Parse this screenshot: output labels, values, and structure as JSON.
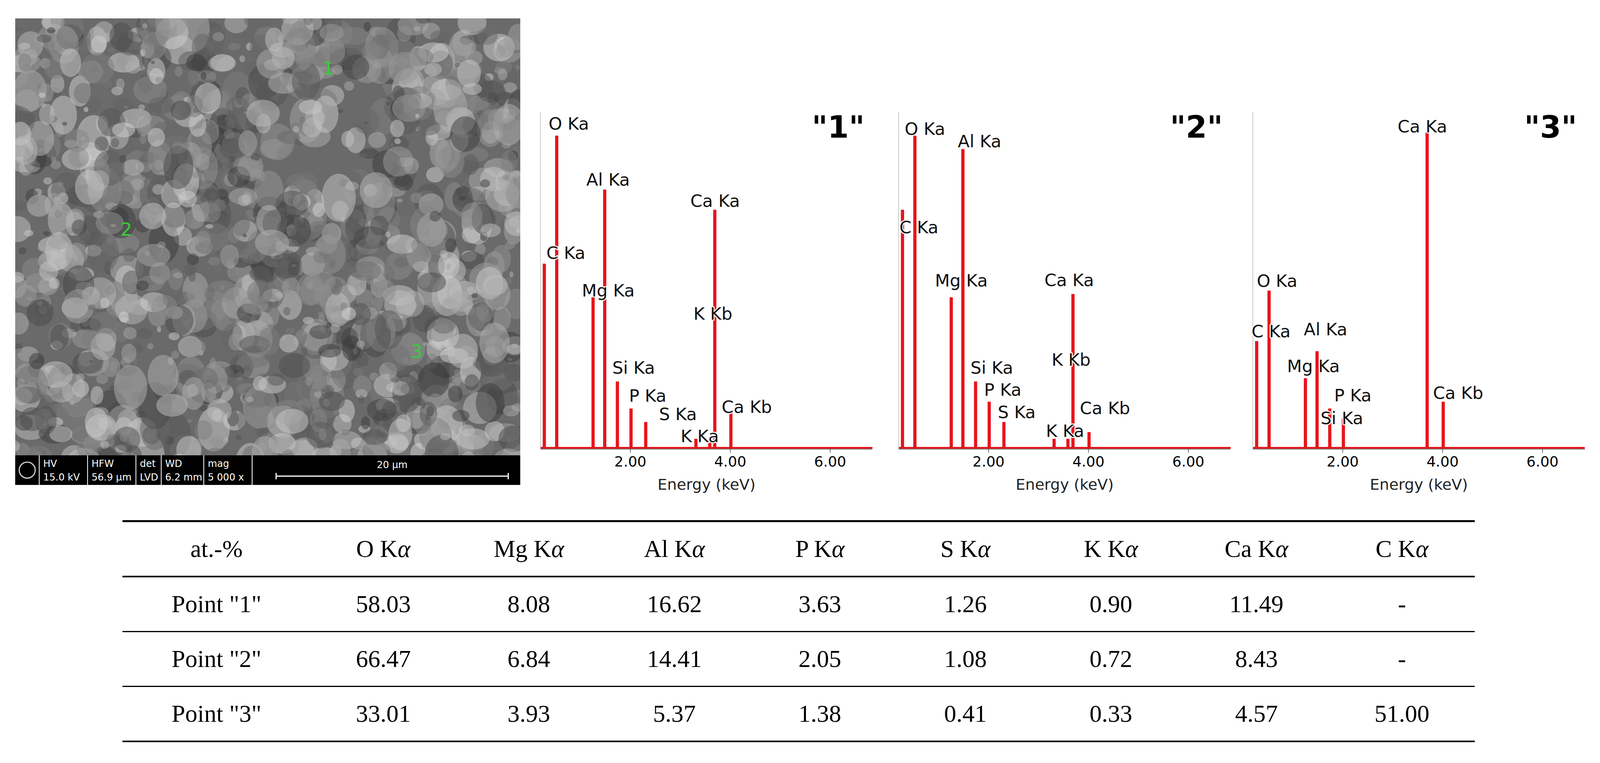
{
  "sem_image": {
    "point_labels": [
      "1",
      "2",
      "3"
    ],
    "info_bar": [
      {
        "label": "HV",
        "value": "15.0 kV"
      },
      {
        "label": "HFW",
        "value": "56.9 µm"
      },
      {
        "label": "det",
        "value": "LVD"
      },
      {
        "label": "WD",
        "value": "6.2 mm"
      },
      {
        "label": "mag",
        "value": "5 000 x"
      }
    ],
    "scale_bar": "20 µm"
  },
  "chart_data": [
    {
      "type": "spectrum",
      "title": "\"1\"",
      "x_label": "Energy (keV)",
      "color": "#e8141c",
      "tick_labels": "x",
      "xlim": [
        0.2,
        6.85
      ],
      "xticks": [
        {
          "value": 2,
          "label": "2.00"
        },
        {
          "value": 4,
          "label": "4.00"
        },
        {
          "value": 6,
          "label": "6.00"
        }
      ],
      "ylim": [
        0,
        100
      ],
      "x": [
        0.277,
        0.525,
        1.253,
        1.486,
        1.74,
        2.013,
        2.307,
        3.312,
        3.69,
        3.589,
        4.012
      ],
      "values": [
        55,
        93,
        45,
        77,
        20,
        12,
        8,
        3,
        71,
        3,
        11
      ],
      "annotations": [
        "C Ka",
        "O Ka",
        "Mg Ka",
        "Al Ka",
        "Si Ka",
        "P Ka",
        "S Ka",
        "K Ka",
        "Ca Ka",
        "K Kb",
        "Ca Kb"
      ]
    },
    {
      "type": "spectrum",
      "title": "\"2\"",
      "x_label": "Energy (keV)",
      "color": "#e8141c",
      "tick_labels": "x",
      "xlim": [
        0.2,
        6.85
      ],
      "xticks": [
        {
          "value": 2,
          "label": "2.00"
        },
        {
          "value": 4,
          "label": "4.00"
        },
        {
          "value": 6,
          "label": "6.00"
        }
      ],
      "ylim": [
        0,
        100
      ],
      "x": [
        0.277,
        0.525,
        1.253,
        1.486,
        1.74,
        2.013,
        2.307,
        3.312,
        3.69,
        3.589,
        4.012
      ],
      "values": [
        71,
        93,
        45,
        89,
        20,
        14,
        8,
        3,
        46,
        3,
        5
      ],
      "annotations": [
        "C Ka",
        "O Ka",
        "Mg Ka",
        "Al Ka",
        "Si Ka",
        "P Ka",
        "S Ka",
        "K Ka",
        "Ca Ka",
        "K Kb",
        "Ca Kb"
      ]
    },
    {
      "type": "spectrum",
      "title": "\"3\"",
      "x_label": "Energy (keV)",
      "color": "#e8141c",
      "tick_labels": "x",
      "xlim": [
        0.2,
        6.85
      ],
      "xticks": [
        {
          "value": 2,
          "label": "2.00"
        },
        {
          "value": 4,
          "label": "4.00"
        },
        {
          "value": 6,
          "label": "6.00"
        }
      ],
      "ylim": [
        0,
        100
      ],
      "x": [
        0.277,
        0.525,
        1.253,
        1.486,
        1.74,
        2.013,
        3.69,
        4.012
      ],
      "values": [
        32,
        47,
        21,
        29,
        12,
        9,
        94,
        14
      ],
      "annotations": [
        "C Ka",
        "O Ka",
        "Mg Ka",
        "Al Ka",
        "Si Ka",
        "P Ka",
        "Ca Ka",
        "Ca Kb"
      ]
    }
  ],
  "table": {
    "header": [
      "at.-%",
      "O Kα",
      "Mg Kα",
      "Al Kα",
      "P Kα",
      "S Kα",
      "K Kα",
      "Ca Kα",
      "C Kα"
    ],
    "rows": [
      [
        "Point \"1\"",
        "58.03",
        "8.08",
        "16.62",
        "3.63",
        "1.26",
        "0.90",
        "11.49",
        "-"
      ],
      [
        "Point \"2\"",
        "66.47",
        "6.84",
        "14.41",
        "2.05",
        "1.08",
        "0.72",
        "8.43",
        "-"
      ],
      [
        "Point \"3\"",
        "33.01",
        "3.93",
        "5.37",
        "1.38",
        "0.41",
        "0.33",
        "4.57",
        "51.00"
      ]
    ]
  }
}
